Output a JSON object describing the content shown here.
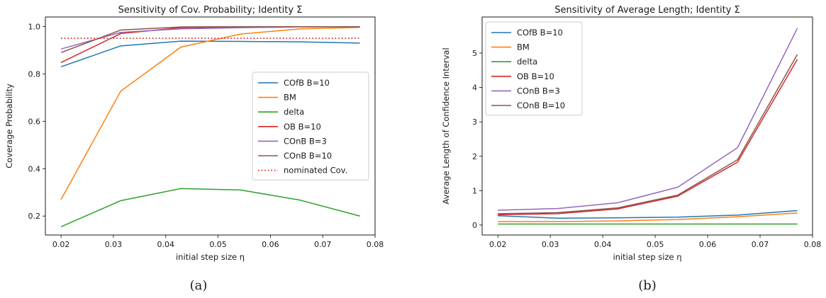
{
  "chart_data": [
    {
      "type": "line",
      "title": "Sensitivity of Cov. Probability; Identity Σ",
      "xlabel": "initial step size η",
      "ylabel": "Coverage Probability",
      "caption": "(a)",
      "xlim": [
        0.017,
        0.08
      ],
      "ylim": [
        0.12,
        1.04
      ],
      "xticks": [
        0.02,
        0.03,
        0.04,
        0.05,
        0.06,
        0.07,
        0.08
      ],
      "xtick_labels": [
        "0.02",
        "0.03",
        "0.04",
        "0.05",
        "0.06",
        "0.07",
        "0.08"
      ],
      "yticks": [
        0.2,
        0.4,
        0.6,
        0.8,
        1.0
      ],
      "ytick_labels": [
        "0.2",
        "0.4",
        "0.6",
        "0.8",
        "1.0"
      ],
      "grid": false,
      "legend_position": "center-right",
      "x": [
        0.02,
        0.0314,
        0.0429,
        0.0543,
        0.0657,
        0.0771
      ],
      "series": [
        {
          "name": "COfB B=10",
          "color": "#1f77b4",
          "style": "solid",
          "values": [
            0.83,
            0.918,
            0.938,
            0.937,
            0.935,
            0.93
          ]
        },
        {
          "name": "BM",
          "color": "#ff7f0e",
          "style": "solid",
          "values": [
            0.27,
            0.727,
            0.913,
            0.968,
            0.99,
            0.996
          ]
        },
        {
          "name": "delta",
          "color": "#2ca02c",
          "style": "solid",
          "values": [
            0.155,
            0.265,
            0.316,
            0.31,
            0.267,
            0.2
          ]
        },
        {
          "name": "OB B=10",
          "color": "#d62728",
          "style": "solid",
          "values": [
            0.848,
            0.97,
            0.995,
            0.998,
            0.999,
            0.999
          ]
        },
        {
          "name": "COnB B=3",
          "color": "#9467bd",
          "style": "solid",
          "values": [
            0.905,
            0.975,
            0.99,
            0.995,
            0.998,
            0.998
          ]
        },
        {
          "name": "COnB B=10",
          "color": "#8c564b",
          "style": "solid",
          "values": [
            0.89,
            0.985,
            0.998,
            0.999,
            0.999,
            0.999
          ]
        },
        {
          "name": "nominated Cov.",
          "color": "#d62728",
          "style": "dotted",
          "values": [
            0.95,
            0.95,
            0.95,
            0.95,
            0.95,
            0.95
          ]
        }
      ]
    },
    {
      "type": "line",
      "title": "Sensitivity of Average Length; Identity Σ",
      "xlabel": "initial step size η",
      "ylabel": "Average Length of Confidence Interval",
      "caption": "(b)",
      "xlim": [
        0.017,
        0.08
      ],
      "ylim": [
        -0.29,
        6.05
      ],
      "xticks": [
        0.02,
        0.03,
        0.04,
        0.05,
        0.06,
        0.07,
        0.08
      ],
      "xtick_labels": [
        "0.02",
        "0.03",
        "0.04",
        "0.05",
        "0.06",
        "0.07",
        "0.08"
      ],
      "yticks": [
        0,
        1,
        2,
        3,
        4,
        5
      ],
      "ytick_labels": [
        "0",
        "1",
        "2",
        "3",
        "4",
        "5"
      ],
      "grid": false,
      "legend_position": "top-left",
      "x": [
        0.02,
        0.0314,
        0.0429,
        0.0543,
        0.0657,
        0.0771
      ],
      "series": [
        {
          "name": "COfB B=10",
          "color": "#1f77b4",
          "style": "solid",
          "values": [
            0.27,
            0.2,
            0.21,
            0.23,
            0.29,
            0.42
          ]
        },
        {
          "name": "BM",
          "color": "#ff7f0e",
          "style": "solid",
          "values": [
            0.1,
            0.1,
            0.12,
            0.16,
            0.24,
            0.35
          ]
        },
        {
          "name": "delta",
          "color": "#2ca02c",
          "style": "solid",
          "values": [
            0.03,
            0.03,
            0.03,
            0.03,
            0.03,
            0.03
          ]
        },
        {
          "name": "OB B=10",
          "color": "#d62728",
          "style": "solid",
          "values": [
            0.3,
            0.33,
            0.47,
            0.84,
            1.83,
            4.82
          ]
        },
        {
          "name": "COnB B=3",
          "color": "#9467bd",
          "style": "solid",
          "values": [
            0.43,
            0.48,
            0.65,
            1.1,
            2.25,
            5.72
          ]
        },
        {
          "name": "COnB B=10",
          "color": "#8c564b",
          "style": "solid",
          "values": [
            0.33,
            0.36,
            0.5,
            0.87,
            1.9,
            4.96
          ]
        }
      ]
    }
  ]
}
